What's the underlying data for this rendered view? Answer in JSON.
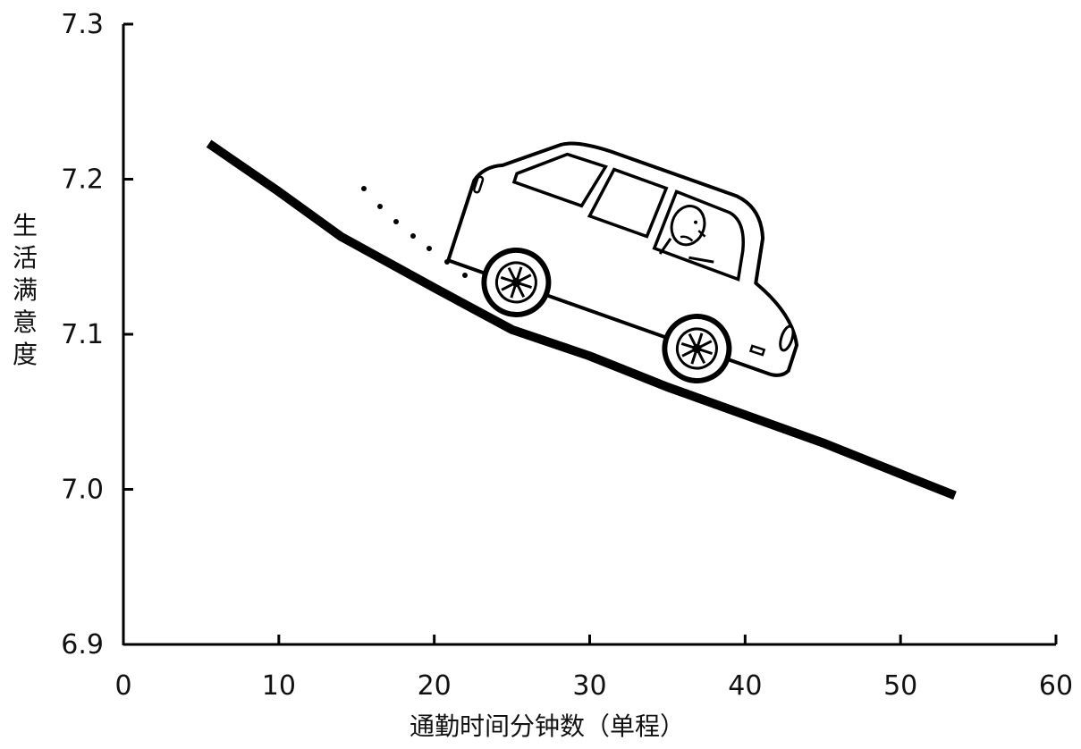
{
  "chart_data": {
    "type": "line",
    "title": "",
    "xlabel": "通勤时间分钟数（单程）",
    "ylabel": "生活满意度",
    "xlim": [
      0,
      60
    ],
    "ylim": [
      6.9,
      7.3
    ],
    "x_ticks": [
      "0",
      "10",
      "20",
      "30",
      "40",
      "50",
      "60"
    ],
    "y_ticks": [
      "6.9",
      "7.0",
      "7.1",
      "7.2",
      "7.3"
    ],
    "series": [
      {
        "x": [
          5.5,
          10,
          14,
          20,
          25,
          30,
          35,
          40,
          45,
          50,
          53.5
        ],
        "y": [
          7.223,
          7.192,
          7.163,
          7.13,
          7.103,
          7.086,
          7.066,
          7.048,
          7.03,
          7.01,
          6.996
        ]
      }
    ],
    "grid": false,
    "legend": "none",
    "annotations": [
      "car-illustration"
    ],
    "colors": {
      "line": "#000000",
      "axis": "#000000",
      "text": "#111111"
    }
  }
}
